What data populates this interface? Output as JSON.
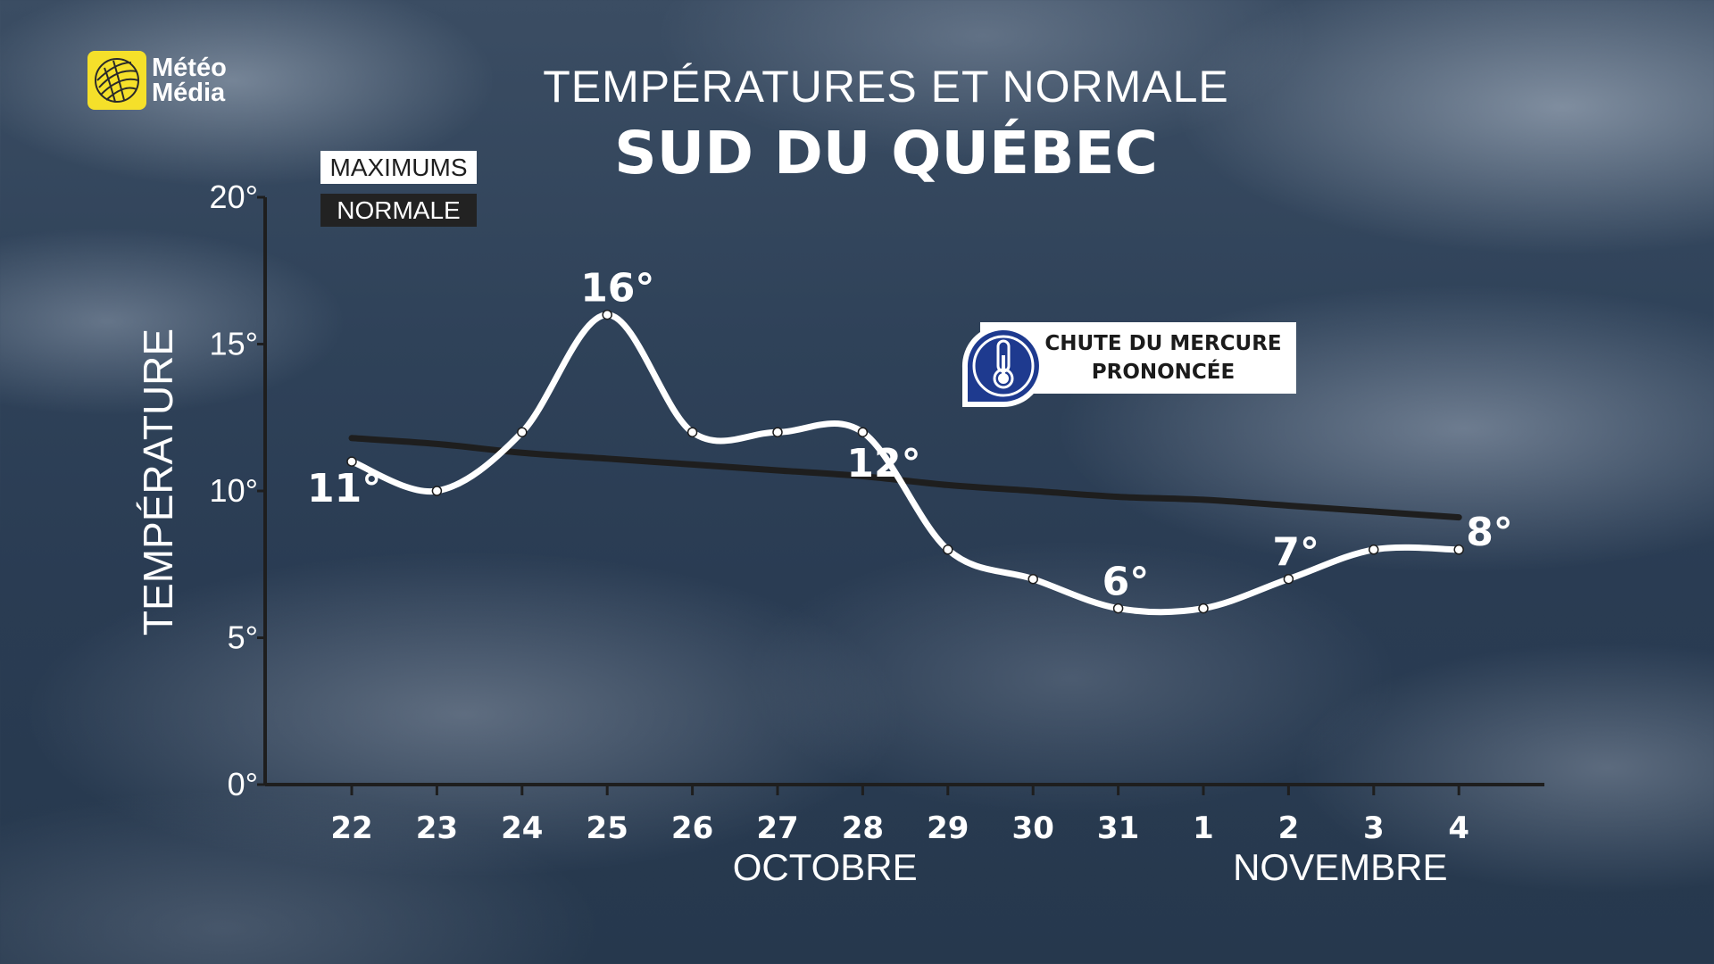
{
  "logo": {
    "line1": "Météo",
    "line2": "Média",
    "color": "#f5e02a"
  },
  "header": {
    "title": "TEMPÉRATURES ET NORMALE",
    "subtitle": "SUD DU QUÉBEC"
  },
  "legend": {
    "maximums": "MAXIMUMS",
    "normale": "NORMALE"
  },
  "callout": {
    "line1": "CHUTE DU MERCURE",
    "line2": "PRONONCÉE",
    "icon": "thermometer-icon",
    "badge_color": "#1e3a8f"
  },
  "chart_data": {
    "type": "line",
    "ylabel": "TEMPÉRATURE",
    "ylim": [
      0,
      20
    ],
    "yticks": [
      "0°",
      "5°",
      "10°",
      "15°",
      "20°"
    ],
    "x": [
      "22",
      "23",
      "24",
      "25",
      "26",
      "27",
      "28",
      "29",
      "30",
      "31",
      "1",
      "2",
      "3",
      "4"
    ],
    "months": [
      "OCTOBRE",
      "NOVEMBRE"
    ],
    "series": [
      {
        "name": "MAXIMUMS",
        "color": "#ffffff",
        "values": [
          11,
          10,
          12,
          16,
          12,
          12,
          12,
          8,
          7,
          6,
          6,
          7,
          8,
          8
        ]
      },
      {
        "name": "NORMALE",
        "color": "#1e1e1e",
        "values": [
          11.8,
          11.6,
          11.3,
          11.1,
          10.9,
          10.7,
          10.5,
          10.2,
          10.0,
          9.8,
          9.7,
          9.5,
          9.3,
          9.1
        ]
      }
    ],
    "data_labels": [
      {
        "index": 0,
        "text": "11°"
      },
      {
        "index": 3,
        "text": "16°"
      },
      {
        "index": 6,
        "text": "12°"
      },
      {
        "index": 9,
        "text": "6°"
      },
      {
        "index": 11,
        "text": "7°"
      },
      {
        "index": 13,
        "text": "8°"
      }
    ],
    "grid": false,
    "legend_position": "top-left"
  }
}
